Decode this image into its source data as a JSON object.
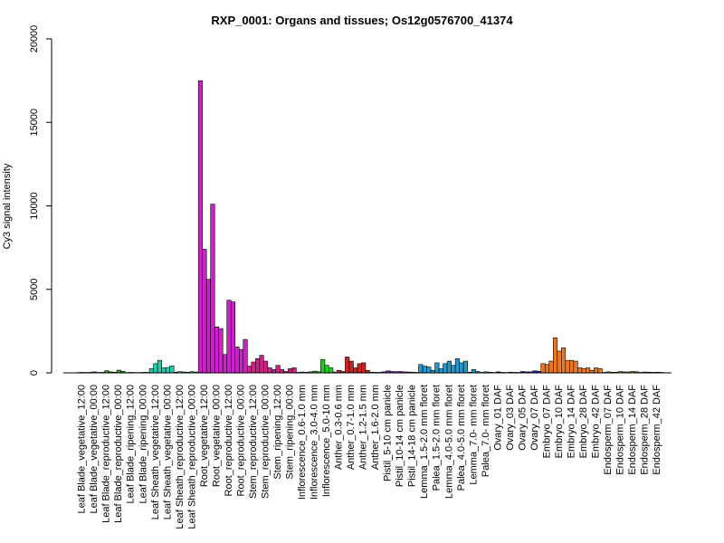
{
  "chart_data": {
    "type": "bar",
    "title": "RXP_0001: Organs and tissues; Os12g0576700_41374",
    "xlabel": "",
    "ylabel": "Cy3 signal intensity",
    "ylim": [
      0,
      20000
    ],
    "yticks": [
      0,
      5000,
      10000,
      15000,
      20000
    ],
    "grid": false,
    "legend": "none",
    "groups": [
      {
        "label": "Leaf Blade_vegetative_12:00",
        "color": "#808080",
        "values": [
          20,
          30,
          25
        ]
      },
      {
        "label": "Leaf Blade_vegetative_00:00",
        "color": "#808080",
        "values": [
          30,
          60,
          25
        ]
      },
      {
        "label": "Leaf Blade_reproductive_12:00",
        "color": "#22aa22",
        "values": [
          30,
          130,
          60
        ]
      },
      {
        "label": "Leaf Blade_reproductive_00:00",
        "color": "#22aa22",
        "values": [
          40,
          160,
          90
        ]
      },
      {
        "label": "Leaf Blade_ripening_12:00",
        "color": "#22aa22",
        "values": [
          20,
          30,
          20
        ]
      },
      {
        "label": "Leaf Blade_ripening_00:00",
        "color": "#22aa22",
        "values": [
          20,
          30,
          30
        ]
      },
      {
        "label": "Leaf Sheath_vegetative_12:00",
        "color": "#22ccaa",
        "values": [
          250,
          550,
          750
        ]
      },
      {
        "label": "Leaf Sheath_vegetative_00:00",
        "color": "#22ccaa",
        "values": [
          300,
          320,
          420
        ]
      },
      {
        "label": "Leaf Sheath_reproductive_12:00",
        "color": "#22ccaa",
        "values": [
          40,
          70,
          50
        ]
      },
      {
        "label": "Leaf Sheath_reproductive_00:00",
        "color": "#22ccaa",
        "values": [
          40,
          70,
          50
        ]
      },
      {
        "label": "Root_vegetative_12:00",
        "color": "#cc22cc",
        "values": [
          17500,
          7400,
          5600
        ]
      },
      {
        "label": "Root_vegetative_00:00",
        "color": "#cc22cc",
        "values": [
          10100,
          2750,
          2650
        ]
      },
      {
        "label": "Root_reproductive_12:00",
        "color": "#cc22cc",
        "values": [
          1100,
          4350,
          4250
        ]
      },
      {
        "label": "Root_reproductive_00:00",
        "color": "#cc22cc",
        "values": [
          1550,
          1400,
          2000
        ]
      },
      {
        "label": "Stem_reproductive_12:00",
        "color": "#cc2288",
        "values": [
          400,
          650,
          850
        ]
      },
      {
        "label": "Stem_reproductive_00:00",
        "color": "#cc2288",
        "values": [
          1050,
          700,
          300
        ]
      },
      {
        "label": "Stem_ripening_12:00",
        "color": "#cc2288",
        "values": [
          200,
          450,
          200
        ]
      },
      {
        "label": "Stem_ripening_00:00",
        "color": "#cc2288",
        "values": [
          80,
          250,
          300
        ]
      },
      {
        "label": "Inflorescence_0.6-1.0 mm",
        "color": "#22cc22",
        "values": [
          30,
          50,
          40
        ]
      },
      {
        "label": "Inflorescence_3.0-4.0 mm",
        "color": "#22cc22",
        "values": [
          60,
          100,
          70
        ]
      },
      {
        "label": "Inflorescence_5.0-10 mm",
        "color": "#22cc22",
        "values": [
          800,
          450,
          300
        ]
      },
      {
        "label": "Anther_0.3-0.6 mm",
        "color": "#cc2222",
        "values": [
          50,
          150,
          80
        ]
      },
      {
        "label": "Anther_0.7-1.0 mm",
        "color": "#cc2222",
        "values": [
          950,
          700,
          300
        ]
      },
      {
        "label": "Anther_1.2-1.5 mm",
        "color": "#cc2222",
        "values": [
          550,
          600,
          150
        ]
      },
      {
        "label": "Anther_1.6-2.0 mm",
        "color": "#cc2222",
        "values": [
          40,
          30,
          30
        ]
      },
      {
        "label": "Pistil_5-10 cm panicle",
        "color": "#8822cc",
        "values": [
          60,
          120,
          80
        ]
      },
      {
        "label": "Pistil_10-14 cm panicle",
        "color": "#8822cc",
        "values": [
          70,
          80,
          60
        ]
      },
      {
        "label": "Pistil_14-18 cm panicle",
        "color": "#8822cc",
        "values": [
          50,
          40,
          30
        ]
      },
      {
        "label": "Lemma_1.5-2.0 mm floret",
        "color": "#2299cc",
        "values": [
          500,
          400,
          350
        ]
      },
      {
        "label": "Palea_1.5-2.0 mm floret",
        "color": "#2299cc",
        "values": [
          150,
          600,
          250
        ]
      },
      {
        "label": "Lemma_4.0-5.0 mm floret",
        "color": "#2299cc",
        "values": [
          550,
          700,
          450
        ]
      },
      {
        "label": "Palea_4.0-5.0 mm floret",
        "color": "#2299cc",
        "values": [
          850,
          600,
          700
        ]
      },
      {
        "label": "Lemma_7.0- mm floret",
        "color": "#2299cc",
        "values": [
          40,
          200,
          80
        ]
      },
      {
        "label": "Palea_7.0- mm floret",
        "color": "#2299cc",
        "values": [
          30,
          60,
          40
        ]
      },
      {
        "label": "Ovary_01 DAF",
        "color": "#2222cc",
        "values": [
          20,
          60,
          30
        ]
      },
      {
        "label": "Ovary_03 DAF",
        "color": "#2222cc",
        "values": [
          20,
          40,
          30
        ]
      },
      {
        "label": "Ovary_05 DAF",
        "color": "#2222cc",
        "values": [
          30,
          80,
          60
        ]
      },
      {
        "label": "Ovary_07 DAF",
        "color": "#2222cc",
        "values": [
          60,
          120,
          100
        ]
      },
      {
        "label": "Embryo_07 DAF",
        "color": "#ee7722",
        "values": [
          550,
          500,
          700
        ]
      },
      {
        "label": "Embryo_10 DAF",
        "color": "#ee7722",
        "values": [
          2100,
          1300,
          1500
        ]
      },
      {
        "label": "Embryo_14 DAF",
        "color": "#ee7722",
        "values": [
          750,
          750,
          700
        ]
      },
      {
        "label": "Embryo_28 DAF",
        "color": "#ee7722",
        "values": [
          300,
          250,
          300
        ]
      },
      {
        "label": "Embryo_42 DAF",
        "color": "#ee7722",
        "values": [
          150,
          300,
          250
        ]
      },
      {
        "label": "Endosperm_07 DAF",
        "color": "#aaaa22",
        "values": [
          30,
          60,
          40
        ]
      },
      {
        "label": "Endosperm_10 DAF",
        "color": "#aaaa22",
        "values": [
          40,
          80,
          60
        ]
      },
      {
        "label": "Endosperm_14 DAF",
        "color": "#aaaa22",
        "values": [
          50,
          90,
          60
        ]
      },
      {
        "label": "Endosperm_28 DAF",
        "color": "#aaaa22",
        "values": [
          30,
          50,
          40
        ]
      },
      {
        "label": "Endosperm_42 DAF",
        "color": "#aaaa22",
        "values": [
          30,
          40,
          30
        ]
      }
    ]
  }
}
